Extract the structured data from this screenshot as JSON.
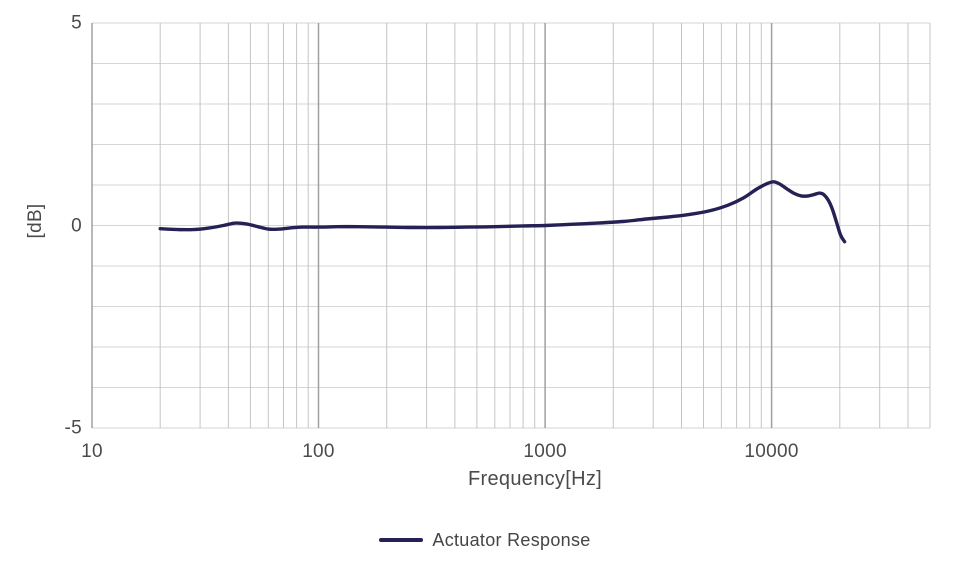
{
  "chart_data": {
    "type": "line",
    "title": "",
    "xlabel": "Frequency[Hz]",
    "ylabel": "[dB]",
    "x_scale": "log",
    "xlim": [
      10,
      50000
    ],
    "ylim": [
      -5,
      5
    ],
    "y_grid_step": 1,
    "grid": true,
    "x_major_ticks": [
      10,
      100,
      1000,
      10000
    ],
    "x_tick_labels": [
      "10",
      "100",
      "1000",
      "10000"
    ],
    "y_major_ticks": [
      5,
      0,
      -5
    ],
    "y_tick_labels": [
      "5",
      "0",
      "-5"
    ],
    "legend_position": "bottom",
    "series": [
      {
        "name": "Actuator Response",
        "color": "#252155",
        "x": [
          20,
          24,
          28,
          33,
          38,
          43,
          48,
          54,
          60,
          67,
          75,
          85,
          100,
          120,
          150,
          200,
          260,
          340,
          450,
          600,
          800,
          1000,
          1300,
          1700,
          2200,
          2800,
          3500,
          4300,
          5300,
          6400,
          7500,
          8600,
          9500,
          10200,
          10900,
          11700,
          12600,
          13500,
          14500,
          15500,
          16300,
          17000,
          17800,
          18600,
          19400,
          20200,
          21000
        ],
        "y": [
          -0.08,
          -0.1,
          -0.1,
          -0.06,
          0.0,
          0.06,
          0.04,
          -0.03,
          -0.09,
          -0.09,
          -0.06,
          -0.04,
          -0.04,
          -0.03,
          -0.03,
          -0.04,
          -0.05,
          -0.05,
          -0.04,
          -0.03,
          -0.01,
          0.0,
          0.03,
          0.06,
          0.1,
          0.16,
          0.21,
          0.27,
          0.36,
          0.5,
          0.68,
          0.9,
          1.03,
          1.08,
          1.02,
          0.9,
          0.79,
          0.73,
          0.73,
          0.77,
          0.8,
          0.76,
          0.62,
          0.38,
          0.05,
          -0.25,
          -0.4
        ]
      }
    ]
  },
  "colors": {
    "background": "#ffffff",
    "grid_horizontal": "#d6d6d6",
    "grid_minor_vertical": "#c4c4c4",
    "grid_major_vertical": "#a0a0a0",
    "axis_text": "#4b4b4b",
    "series_line": "#252155"
  }
}
